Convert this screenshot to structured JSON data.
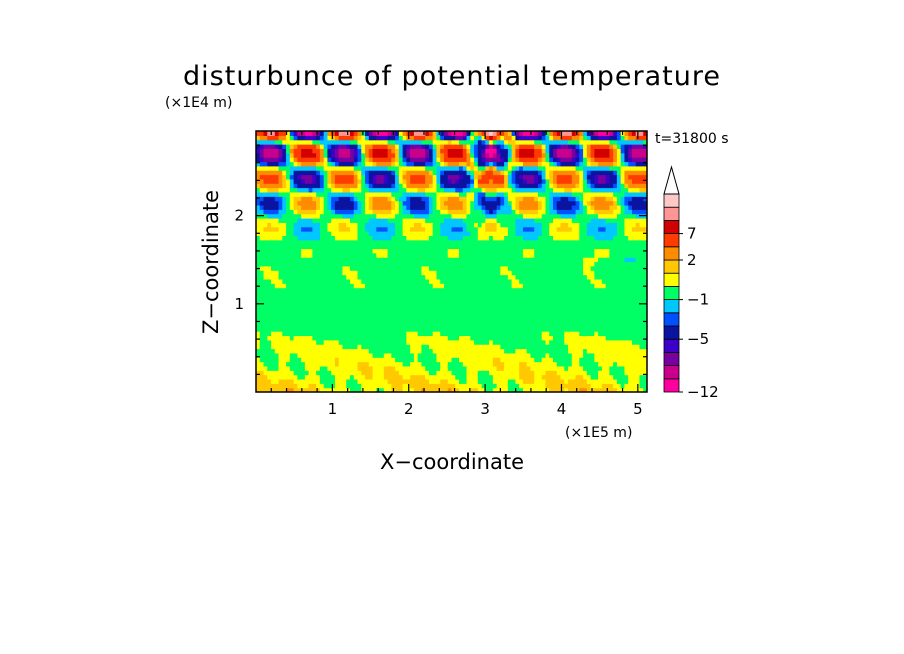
{
  "chart_data": {
    "type": "heatmap",
    "title": "disturbunce of potential temperature",
    "xlabel": "X−coordinate",
    "ylabel": "Z−coordinate",
    "x_scale_label": "(×1E5 m)",
    "y_scale_label": "(×1E4 m)",
    "time_label": "t=31800 s",
    "x_range": [
      0,
      5.12
    ],
    "y_range": [
      0,
      2.96
    ],
    "x_ticks": [
      "1",
      "2",
      "3",
      "4",
      "5"
    ],
    "y_ticks": [
      "1",
      "2"
    ],
    "x_tick_values": [
      1,
      2,
      3,
      4,
      5
    ],
    "y_tick_values": [
      1,
      2
    ],
    "colorbar": {
      "tick_labels": [
        "7",
        "2",
        "−1",
        "−5",
        "−12"
      ],
      "tick_values": [
        7,
        2,
        -1,
        -5,
        -12
      ],
      "extend": "max",
      "levels": [
        {
          "from": -12,
          "to": -10,
          "color": "#ff00a0"
        },
        {
          "from": -10,
          "to": -8,
          "color": "#c8008c"
        },
        {
          "from": -8,
          "to": -6,
          "color": "#7800a0"
        },
        {
          "from": -6,
          "to": -5,
          "color": "#3c00c8"
        },
        {
          "from": -5,
          "to": -3,
          "color": "#0a14a0"
        },
        {
          "from": -3,
          "to": -2,
          "color": "#0050ff"
        },
        {
          "from": -2,
          "to": -1,
          "color": "#00c8ff"
        },
        {
          "from": -1,
          "to": 0,
          "color": "#00ff64"
        },
        {
          "from": 0,
          "to": 1,
          "color": "#ffff00"
        },
        {
          "from": 1,
          "to": 2,
          "color": "#ffc800"
        },
        {
          "from": 2,
          "to": 4,
          "color": "#ff8c00"
        },
        {
          "from": 4,
          "to": 7,
          "color": "#ff3c00"
        },
        {
          "from": 7,
          "to": 9,
          "color": "#d20000"
        },
        {
          "from": 9,
          "to": 11,
          "color": "#ff9696"
        },
        {
          "from": 11,
          "to": 13,
          "color": "#ffc8c8"
        }
      ]
    }
  }
}
